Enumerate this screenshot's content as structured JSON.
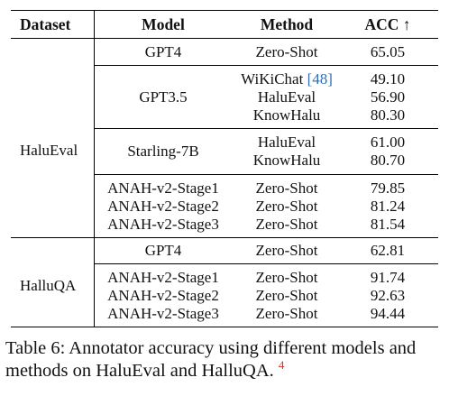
{
  "table": {
    "headers": {
      "dataset": "Dataset",
      "model": "Model",
      "method": "Method",
      "acc": "ACC ↑"
    },
    "sections": [
      {
        "dataset": "HaluEval",
        "groups": [
          {
            "model": "GPT4",
            "rows": [
              {
                "method": "Zero-Shot",
                "acc": "65.05"
              }
            ]
          },
          {
            "model": "GPT3.5",
            "rows": [
              {
                "method": "WiKiChat",
                "citation": "[48]",
                "acc": "49.10"
              },
              {
                "method": "HaluEval",
                "acc": "56.90"
              },
              {
                "method": "KnowHalu",
                "acc": "80.30"
              }
            ]
          },
          {
            "model": "Starling-7B",
            "rows": [
              {
                "method": "HaluEval",
                "acc": "61.00"
              },
              {
                "method": "KnowHalu",
                "acc": "80.70"
              }
            ]
          },
          {
            "rows": [
              {
                "model": "ANAH-v2-Stage1",
                "method": "Zero-Shot",
                "acc": "79.85"
              },
              {
                "model": "ANAH-v2-Stage2",
                "method": "Zero-Shot",
                "acc": "81.24"
              },
              {
                "model": "ANAH-v2-Stage3",
                "method": "Zero-Shot",
                "acc": "81.54"
              }
            ]
          }
        ]
      },
      {
        "dataset": "HalluQA",
        "groups": [
          {
            "model": "GPT4",
            "rows": [
              {
                "method": "Zero-Shot",
                "acc": "62.81"
              }
            ]
          },
          {
            "rows": [
              {
                "model": "ANAH-v2-Stage1",
                "method": "Zero-Shot",
                "acc": "91.74"
              },
              {
                "model": "ANAH-v2-Stage2",
                "method": "Zero-Shot",
                "acc": "92.63"
              },
              {
                "model": "ANAH-v2-Stage3",
                "method": "Zero-Shot",
                "acc": "94.44"
              }
            ]
          }
        ]
      }
    ]
  },
  "caption": {
    "text": "Table 6: Annotator accuracy using different models and methods on HaluEval and HalluQA.",
    "footnote_mark": "4"
  }
}
